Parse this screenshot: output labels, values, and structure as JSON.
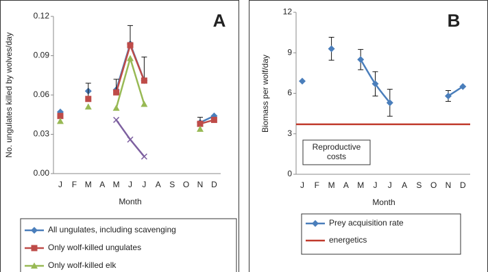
{
  "chart_data": [
    {
      "type": "line",
      "panel_label": "A",
      "x_label": "Month",
      "y_label": "No. ungulates killed by wolves/day",
      "categories": [
        "J",
        "F",
        "M",
        "A",
        "M",
        "J",
        "J",
        "A",
        "S",
        "O",
        "N",
        "D"
      ],
      "ylim": [
        0,
        0.12
      ],
      "yticks": [
        {
          "value": 0,
          "label": "0.00"
        },
        0.03,
        0.06,
        0.09,
        0.12
      ],
      "error_style": "up",
      "series": [
        {
          "name": "All ungulates, including scavenging",
          "color": "#4a7ebb",
          "marker": "diamond",
          "values": [
            0.047,
            null,
            0.063,
            null,
            0.064,
            0.099,
            0.071,
            null,
            null,
            null,
            0.039,
            0.044
          ]
        },
        {
          "name": "Only wolf-killed ungulates",
          "color": "#be4b48",
          "marker": "square",
          "values": [
            0.044,
            null,
            0.057,
            null,
            0.062,
            0.098,
            0.071,
            null,
            null,
            null,
            0.038,
            0.041
          ],
          "errors": [
            null,
            null,
            0.012,
            null,
            0.01,
            0.015,
            0.018,
            null,
            null,
            null,
            0.005,
            null
          ]
        },
        {
          "name": "Only wolf-killed elk",
          "color": "#98b954",
          "marker": "triangle",
          "values": [
            0.04,
            null,
            0.051,
            null,
            0.05,
            0.088,
            0.053,
            null,
            null,
            null,
            0.034,
            null
          ]
        },
        {
          "color": "#7d60a0",
          "marker": "x",
          "values": [
            null,
            null,
            null,
            null,
            0.041,
            0.026,
            0.013,
            null,
            null,
            null,
            null,
            null
          ]
        }
      ]
    },
    {
      "type": "line",
      "panel_label": "B",
      "x_label": "Month",
      "y_label": "Biomass per wolf/day",
      "annotation": "Reproductive costs",
      "smooth": true,
      "categories": [
        "J",
        "F",
        "M",
        "A",
        "M",
        "J",
        "J",
        "A",
        "S",
        "O",
        "N",
        "D"
      ],
      "ylim": [
        0,
        12
      ],
      "yticks": [
        0,
        3,
        6,
        9,
        12
      ],
      "error_style": "both",
      "series": [
        {
          "name": "Prey acquisition rate",
          "color": "#4a7ebb",
          "marker": "diamond",
          "values": [
            6.9,
            null,
            9.3,
            null,
            8.5,
            6.7,
            5.3,
            null,
            null,
            null,
            5.8,
            6.5
          ],
          "errors": [
            null,
            null,
            0.85,
            null,
            0.75,
            0.9,
            1.0,
            null,
            null,
            null,
            0.4,
            null
          ]
        }
      ],
      "reference_line": {
        "name": "energetics",
        "value": 3.7,
        "color": "#c0392b"
      }
    }
  ]
}
